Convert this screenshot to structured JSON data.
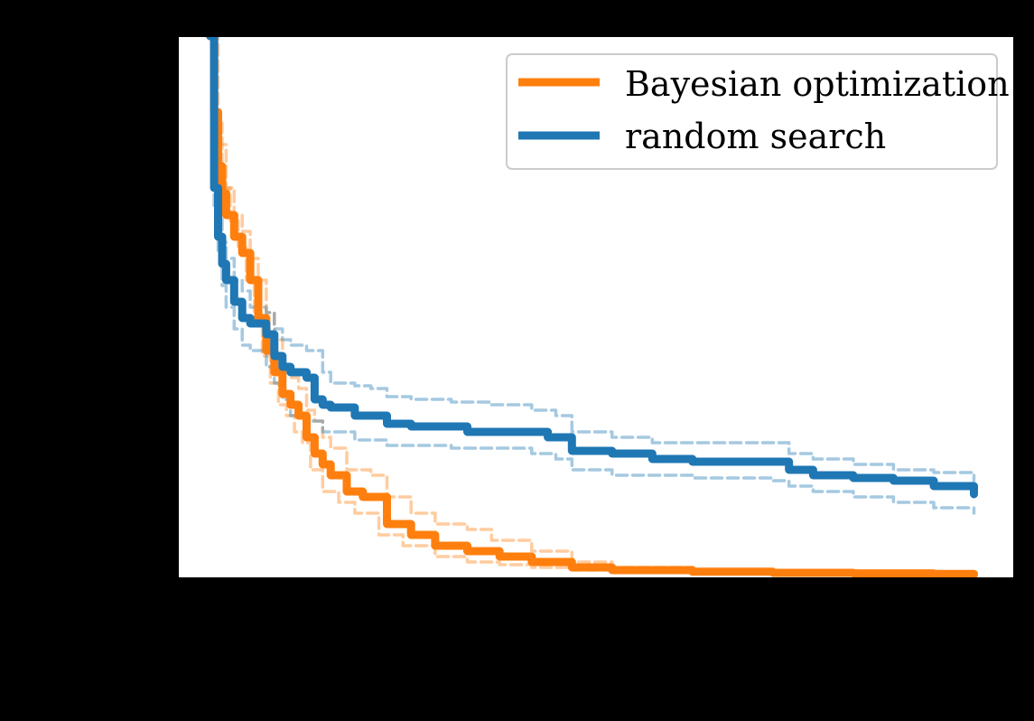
{
  "chart_data": {
    "type": "line",
    "title": "",
    "xlabel": "",
    "ylabel": "",
    "xlim": [
      -8,
      200
    ],
    "ylim": [
      0,
      1
    ],
    "grid": false,
    "legend_placement": "top-right",
    "colors": {
      "bayes": "#ff7f0e",
      "random": "#1f77b4",
      "plot_background": "#ffffff",
      "figure_background": "#000000"
    },
    "series": [
      {
        "name": "Bayesian optimization",
        "color": "#ff7f0e",
        "mean": [
          [
            0,
            1.0
          ],
          [
            1,
            0.86
          ],
          [
            2,
            0.76
          ],
          [
            3,
            0.71
          ],
          [
            4,
            0.67
          ],
          [
            6,
            0.63
          ],
          [
            8,
            0.6
          ],
          [
            10,
            0.55
          ],
          [
            12,
            0.48
          ],
          [
            14,
            0.42
          ],
          [
            16,
            0.38
          ],
          [
            18,
            0.34
          ],
          [
            20,
            0.32
          ],
          [
            22,
            0.3
          ],
          [
            24,
            0.26
          ],
          [
            26,
            0.23
          ],
          [
            28,
            0.21
          ],
          [
            30,
            0.19
          ],
          [
            34,
            0.16
          ],
          [
            38,
            0.15
          ],
          [
            44,
            0.1
          ],
          [
            50,
            0.08
          ],
          [
            56,
            0.06
          ],
          [
            64,
            0.05
          ],
          [
            72,
            0.04
          ],
          [
            80,
            0.03
          ],
          [
            90,
            0.02
          ],
          [
            100,
            0.015
          ],
          [
            120,
            0.012
          ],
          [
            140,
            0.01
          ],
          [
            160,
            0.009
          ],
          [
            180,
            0.008
          ],
          [
            190,
            0.007
          ]
        ],
        "upper": [
          [
            0,
            1.0
          ],
          [
            2,
            0.8
          ],
          [
            4,
            0.72
          ],
          [
            6,
            0.67
          ],
          [
            8,
            0.64
          ],
          [
            10,
            0.59
          ],
          [
            12,
            0.55
          ],
          [
            14,
            0.49
          ],
          [
            16,
            0.44
          ],
          [
            18,
            0.39
          ],
          [
            20,
            0.37
          ],
          [
            22,
            0.35
          ],
          [
            24,
            0.31
          ],
          [
            26,
            0.29
          ],
          [
            28,
            0.26
          ],
          [
            30,
            0.24
          ],
          [
            34,
            0.2
          ],
          [
            40,
            0.19
          ],
          [
            44,
            0.15
          ],
          [
            50,
            0.12
          ],
          [
            56,
            0.1
          ],
          [
            64,
            0.09
          ],
          [
            70,
            0.07
          ],
          [
            80,
            0.05
          ],
          [
            90,
            0.03
          ],
          [
            100,
            0.02
          ],
          [
            120,
            0.015
          ],
          [
            140,
            0.012
          ],
          [
            160,
            0.011
          ],
          [
            190,
            0.01
          ]
        ],
        "lower": [
          [
            0,
            1.0
          ],
          [
            1,
            0.84
          ],
          [
            3,
            0.72
          ],
          [
            5,
            0.66
          ],
          [
            7,
            0.61
          ],
          [
            9,
            0.55
          ],
          [
            11,
            0.48
          ],
          [
            13,
            0.41
          ],
          [
            15,
            0.36
          ],
          [
            17,
            0.32
          ],
          [
            19,
            0.3
          ],
          [
            21,
            0.27
          ],
          [
            23,
            0.25
          ],
          [
            25,
            0.2
          ],
          [
            28,
            0.16
          ],
          [
            32,
            0.14
          ],
          [
            36,
            0.12
          ],
          [
            42,
            0.08
          ],
          [
            48,
            0.06
          ],
          [
            56,
            0.04
          ],
          [
            64,
            0.03
          ],
          [
            72,
            0.025
          ],
          [
            80,
            0.02
          ],
          [
            90,
            0.015
          ],
          [
            100,
            0.011
          ],
          [
            120,
            0.009
          ],
          [
            140,
            0.008
          ],
          [
            160,
            0.007
          ],
          [
            190,
            0.006
          ]
        ]
      },
      {
        "name": "random search",
        "color": "#1f77b4",
        "mean": [
          [
            0,
            1.0
          ],
          [
            1,
            0.72
          ],
          [
            2,
            0.63
          ],
          [
            3,
            0.58
          ],
          [
            4,
            0.55
          ],
          [
            6,
            0.51
          ],
          [
            8,
            0.48
          ],
          [
            10,
            0.47
          ],
          [
            14,
            0.45
          ],
          [
            16,
            0.41
          ],
          [
            18,
            0.39
          ],
          [
            20,
            0.38
          ],
          [
            24,
            0.37
          ],
          [
            26,
            0.33
          ],
          [
            28,
            0.32
          ],
          [
            30,
            0.315
          ],
          [
            36,
            0.3
          ],
          [
            40,
            0.3
          ],
          [
            44,
            0.285
          ],
          [
            50,
            0.28
          ],
          [
            56,
            0.28
          ],
          [
            64,
            0.27
          ],
          [
            70,
            0.27
          ],
          [
            80,
            0.27
          ],
          [
            84,
            0.26
          ],
          [
            90,
            0.235
          ],
          [
            100,
            0.23
          ],
          [
            110,
            0.22
          ],
          [
            120,
            0.215
          ],
          [
            130,
            0.215
          ],
          [
            140,
            0.215
          ],
          [
            144,
            0.2
          ],
          [
            150,
            0.19
          ],
          [
            160,
            0.185
          ],
          [
            170,
            0.18
          ],
          [
            180,
            0.17
          ],
          [
            190,
            0.155
          ]
        ],
        "upper": [
          [
            0,
            1.0
          ],
          [
            1,
            0.76
          ],
          [
            2,
            0.68
          ],
          [
            3,
            0.62
          ],
          [
            4,
            0.59
          ],
          [
            6,
            0.55
          ],
          [
            8,
            0.53
          ],
          [
            10,
            0.5
          ],
          [
            14,
            0.49
          ],
          [
            16,
            0.46
          ],
          [
            18,
            0.44
          ],
          [
            20,
            0.43
          ],
          [
            24,
            0.42
          ],
          [
            28,
            0.38
          ],
          [
            30,
            0.36
          ],
          [
            36,
            0.355
          ],
          [
            40,
            0.35
          ],
          [
            44,
            0.335
          ],
          [
            50,
            0.33
          ],
          [
            60,
            0.325
          ],
          [
            70,
            0.32
          ],
          [
            80,
            0.31
          ],
          [
            86,
            0.3
          ],
          [
            90,
            0.27
          ],
          [
            100,
            0.26
          ],
          [
            110,
            0.25
          ],
          [
            120,
            0.25
          ],
          [
            140,
            0.25
          ],
          [
            144,
            0.23
          ],
          [
            150,
            0.22
          ],
          [
            160,
            0.21
          ],
          [
            170,
            0.2
          ],
          [
            180,
            0.195
          ],
          [
            190,
            0.18
          ]
        ],
        "lower": [
          [
            0,
            1.0
          ],
          [
            1,
            0.68
          ],
          [
            2,
            0.6
          ],
          [
            3,
            0.54
          ],
          [
            4,
            0.5
          ],
          [
            6,
            0.46
          ],
          [
            8,
            0.43
          ],
          [
            10,
            0.42
          ],
          [
            14,
            0.39
          ],
          [
            16,
            0.36
          ],
          [
            18,
            0.33
          ],
          [
            20,
            0.3
          ],
          [
            24,
            0.29
          ],
          [
            28,
            0.27
          ],
          [
            30,
            0.27
          ],
          [
            36,
            0.255
          ],
          [
            44,
            0.245
          ],
          [
            50,
            0.245
          ],
          [
            60,
            0.24
          ],
          [
            70,
            0.24
          ],
          [
            80,
            0.23
          ],
          [
            86,
            0.22
          ],
          [
            90,
            0.2
          ],
          [
            100,
            0.19
          ],
          [
            110,
            0.19
          ],
          [
            120,
            0.185
          ],
          [
            140,
            0.18
          ],
          [
            144,
            0.17
          ],
          [
            150,
            0.16
          ],
          [
            160,
            0.15
          ],
          [
            170,
            0.14
          ],
          [
            180,
            0.13
          ],
          [
            190,
            0.12
          ]
        ]
      }
    ]
  }
}
